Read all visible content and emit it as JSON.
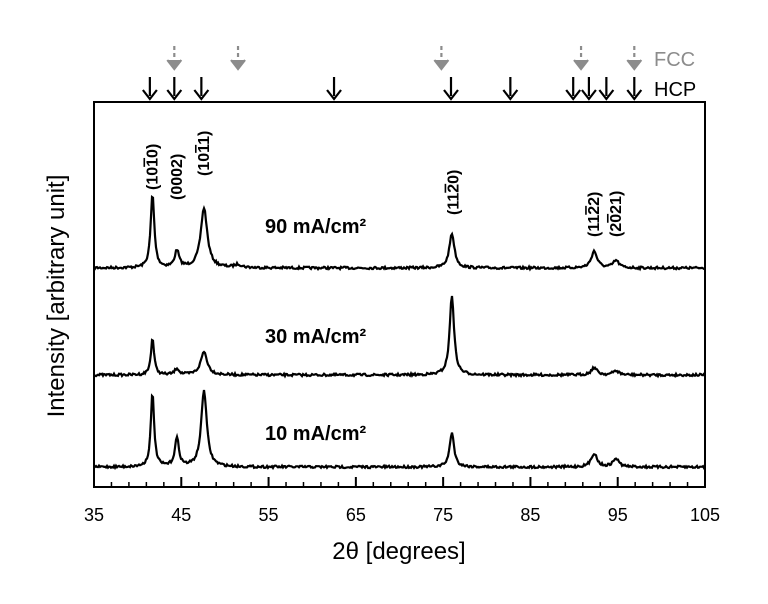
{
  "chart_data": {
    "type": "line",
    "xlabel": "2θ [degrees]",
    "ylabel": "Intensity [arbitrary unit]",
    "xlim": [
      35,
      105
    ],
    "x_ticks": [
      "35",
      "45",
      "55",
      "65",
      "75",
      "85",
      "95",
      "105"
    ],
    "legend": [
      {
        "label": "FCC",
        "color": "#8c8c8c",
        "style": "dashed-arrow"
      },
      {
        "label": "HCP",
        "color": "#000000",
        "style": "solid-arrow"
      }
    ],
    "reference_markers": {
      "FCC": [
        44.2,
        51.5,
        74.8,
        90.8,
        96.9
      ],
      "HCP": [
        41.4,
        44.2,
        47.3,
        62.5,
        75.9,
        82.7,
        89.9,
        91.7,
        93.7,
        96.9
      ]
    },
    "peak_labels": [
      {
        "x": 41.7,
        "text": "(1010)",
        "bar": "3"
      },
      {
        "x": 44.5,
        "text": "(0002)",
        "bar": ""
      },
      {
        "x": 47.6,
        "text": "(1011)",
        "bar": "3"
      },
      {
        "x": 76.2,
        "text": "(1120)",
        "bar": "3"
      },
      {
        "x": 92.3,
        "text": "(1122)",
        "bar": "3"
      },
      {
        "x": 94.8,
        "text": "(2021)",
        "bar": "2"
      }
    ],
    "series": [
      {
        "name": "90 mA/cm²",
        "baseline": 0,
        "peaks": [
          {
            "x": 41.7,
            "height": 0.7,
            "width": 0.25
          },
          {
            "x": 44.5,
            "height": 0.16,
            "width": 0.3
          },
          {
            "x": 47.6,
            "height": 0.57,
            "width": 0.45
          },
          {
            "x": 51.5,
            "height": 0.03,
            "width": 0.5
          },
          {
            "x": 76.0,
            "height": 0.33,
            "width": 0.35
          },
          {
            "x": 92.3,
            "height": 0.16,
            "width": 0.4
          },
          {
            "x": 94.8,
            "height": 0.07,
            "width": 0.4
          }
        ]
      },
      {
        "name": "30 mA/cm²",
        "baseline": 0,
        "peaks": [
          {
            "x": 41.7,
            "height": 0.35,
            "width": 0.22
          },
          {
            "x": 44.5,
            "height": 0.06,
            "width": 0.3
          },
          {
            "x": 47.6,
            "height": 0.22,
            "width": 0.45
          },
          {
            "x": 76.0,
            "height": 0.76,
            "width": 0.3
          },
          {
            "x": 92.3,
            "height": 0.07,
            "width": 0.4
          },
          {
            "x": 94.8,
            "height": 0.04,
            "width": 0.4
          }
        ]
      },
      {
        "name": "10 mA/cm²",
        "baseline": 0,
        "peaks": [
          {
            "x": 41.7,
            "height": 0.7,
            "width": 0.23
          },
          {
            "x": 44.5,
            "height": 0.27,
            "width": 0.28
          },
          {
            "x": 47.6,
            "height": 0.73,
            "width": 0.38
          },
          {
            "x": 76.0,
            "height": 0.33,
            "width": 0.3
          },
          {
            "x": 92.3,
            "height": 0.13,
            "width": 0.4
          },
          {
            "x": 94.8,
            "height": 0.08,
            "width": 0.4
          }
        ]
      }
    ]
  }
}
